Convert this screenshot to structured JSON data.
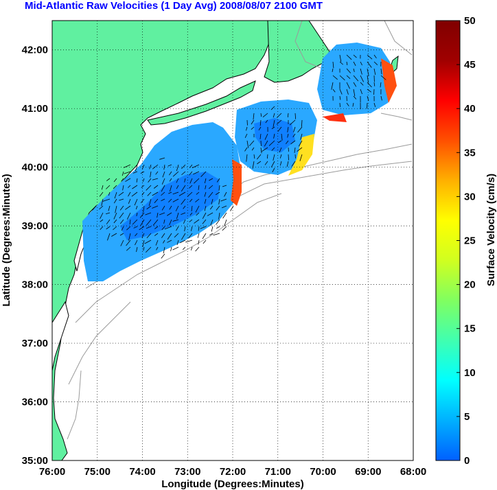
{
  "title": "Mid-Atlantic Raw Velocities (1 Day Avg) 2008/08/07 2100 GMT",
  "x_axis": {
    "label": "Longitude (Degrees:Minutes)",
    "ticks": [
      "76:00",
      "75:00",
      "74:00",
      "73:00",
      "72:00",
      "71:00",
      "70:00",
      "69:00",
      "68:00"
    ],
    "range_deg_west": [
      76,
      68
    ]
  },
  "y_axis": {
    "label": "Latitude (Degrees:Minutes)",
    "ticks": [
      "35:00",
      "36:00",
      "37:00",
      "38:00",
      "39:00",
      "40:00",
      "41:00",
      "42:00"
    ],
    "range_deg_north": [
      35,
      42.5
    ]
  },
  "colorbar": {
    "label": "Surface Velocity (cm/s)",
    "ticks": [
      "0",
      "5",
      "10",
      "15",
      "20",
      "25",
      "30",
      "35",
      "40",
      "45",
      "50"
    ],
    "range": [
      0,
      50
    ],
    "colors": [
      "#0060ff",
      "#00b0ff",
      "#00ffff",
      "#40ffb0",
      "#80ff60",
      "#d0ff20",
      "#ffff00",
      "#ffb000",
      "#ff5000",
      "#ff0000",
      "#a00000",
      "#800000"
    ]
  },
  "colors": {
    "land": "#60f0a0",
    "bathymetry": "#9a9a9a",
    "grid": "#000000",
    "title": "#0000ff"
  }
}
